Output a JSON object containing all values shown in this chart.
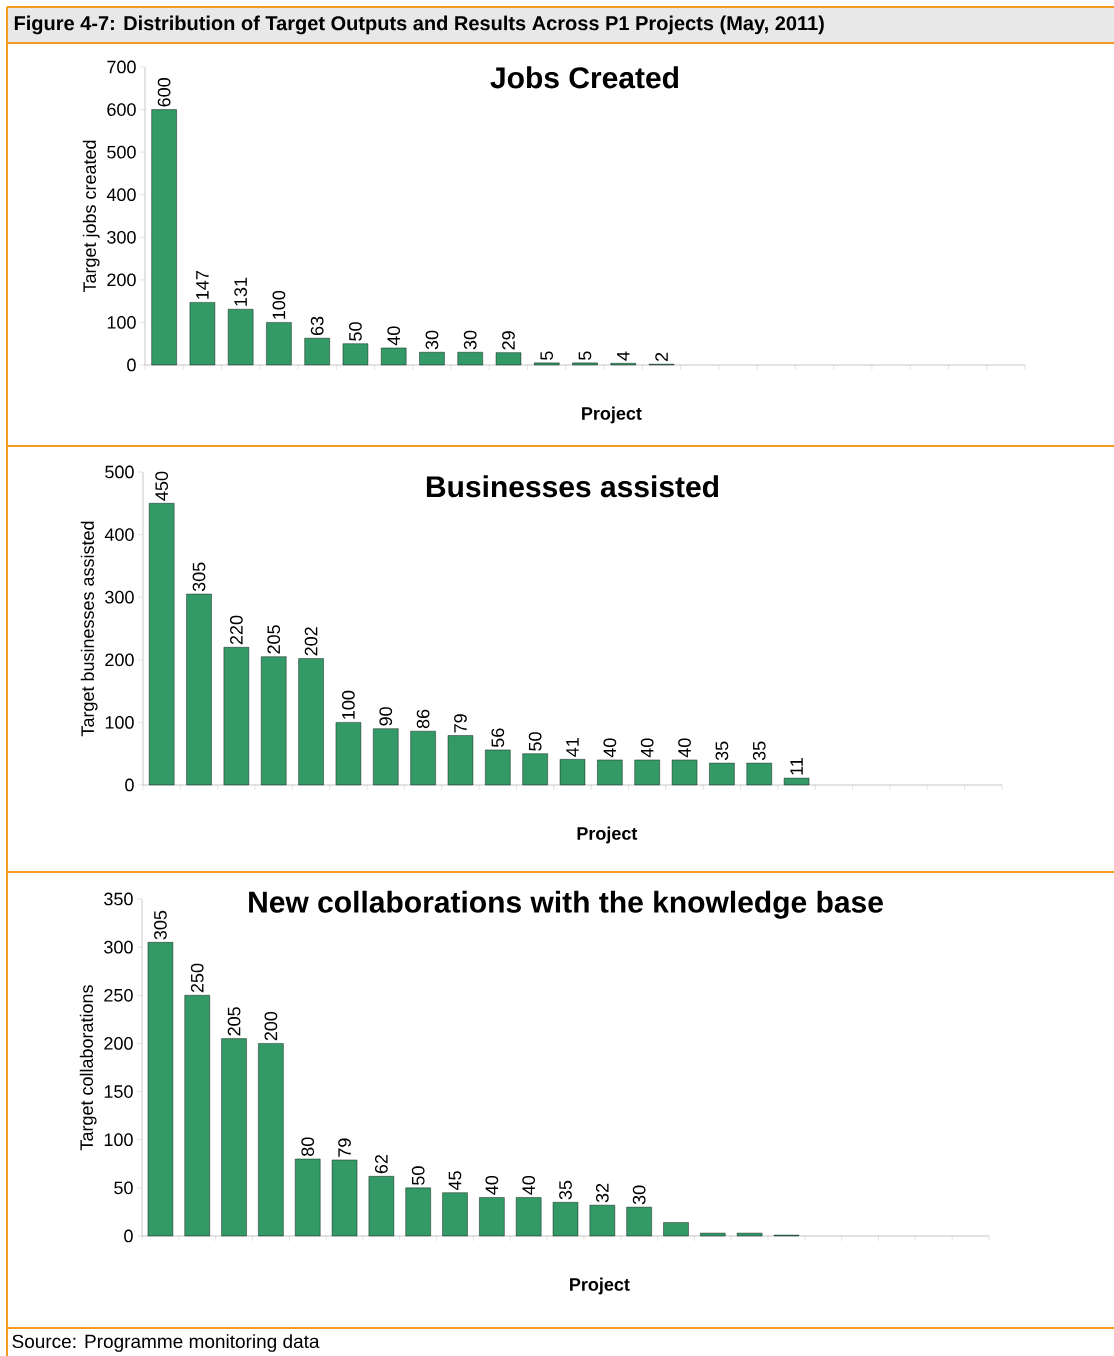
{
  "chart_data": [
    {
      "type": "bar",
      "title": "Jobs Created",
      "xlabel": "Project",
      "ylabel": "Target jobs created",
      "annotations": [
        "Figure 4-7: Distribution of Target Outputs and Results Across P1 Projects (May, 2011)"
      ],
      "categories": [
        null,
        null,
        null,
        null,
        null,
        null,
        null,
        null,
        null,
        null,
        null,
        null,
        null,
        null,
        null,
        null,
        null,
        null,
        null,
        null,
        null,
        null,
        null
      ],
      "values": [
        600,
        147,
        131,
        100,
        63,
        50,
        40,
        30,
        30,
        29,
        5,
        5,
        4,
        2,
        null,
        null,
        null,
        null,
        null,
        null,
        null,
        null,
        null
      ],
      "color": "#339966",
      "ylim": [
        0,
        700
      ],
      "yticks": [
        0,
        100,
        200,
        300,
        400,
        500,
        600,
        700
      ],
      "data_labels": true,
      "grid": false
    },
    {
      "type": "bar",
      "title": "Businesses assisted",
      "xlabel": "Project",
      "ylabel": "Target businesses assisted",
      "categories": [
        null,
        null,
        null,
        null,
        null,
        null,
        null,
        null,
        null,
        null,
        null,
        null,
        null,
        null,
        null,
        null,
        null,
        null,
        null,
        null,
        null,
        null,
        null
      ],
      "values": [
        450,
        305,
        220,
        205,
        202,
        100,
        90,
        86,
        79,
        56,
        50,
        41,
        40,
        40,
        40,
        35,
        35,
        11,
        null,
        null,
        null,
        null,
        null
      ],
      "color": "#339966",
      "ylim": [
        0,
        500
      ],
      "yticks": [
        0,
        100,
        200,
        300,
        400,
        500
      ],
      "data_labels": true,
      "grid": false
    },
    {
      "type": "bar",
      "title": "New collaborations  with the knowledge base",
      "xlabel": "Project",
      "ylabel": "Target collaborations",
      "annotations": [
        "Source: Programme monitoring data"
      ],
      "categories": [
        null,
        null,
        null,
        null,
        null,
        null,
        null,
        null,
        null,
        null,
        null,
        null,
        null,
        null,
        null,
        null,
        null,
        null,
        null,
        null,
        null,
        null,
        null
      ],
      "values": [
        305,
        250,
        205,
        200,
        80,
        79,
        62,
        50,
        45,
        40,
        40,
        35,
        32,
        30,
        14,
        3,
        3,
        1,
        null,
        null,
        null,
        null,
        null
      ],
      "value_labels": [
        "305",
        "250",
        "205",
        "200",
        "80",
        "79",
        "62",
        "50",
        "45",
        "40",
        "40",
        "35",
        "32",
        "30",
        null,
        null,
        null,
        null,
        null,
        null,
        null,
        null,
        null
      ],
      "color": "#339966",
      "ylim": [
        0,
        350
      ],
      "yticks": [
        0,
        50,
        100,
        150,
        200,
        250,
        300,
        350
      ],
      "grid": false
    }
  ]
}
